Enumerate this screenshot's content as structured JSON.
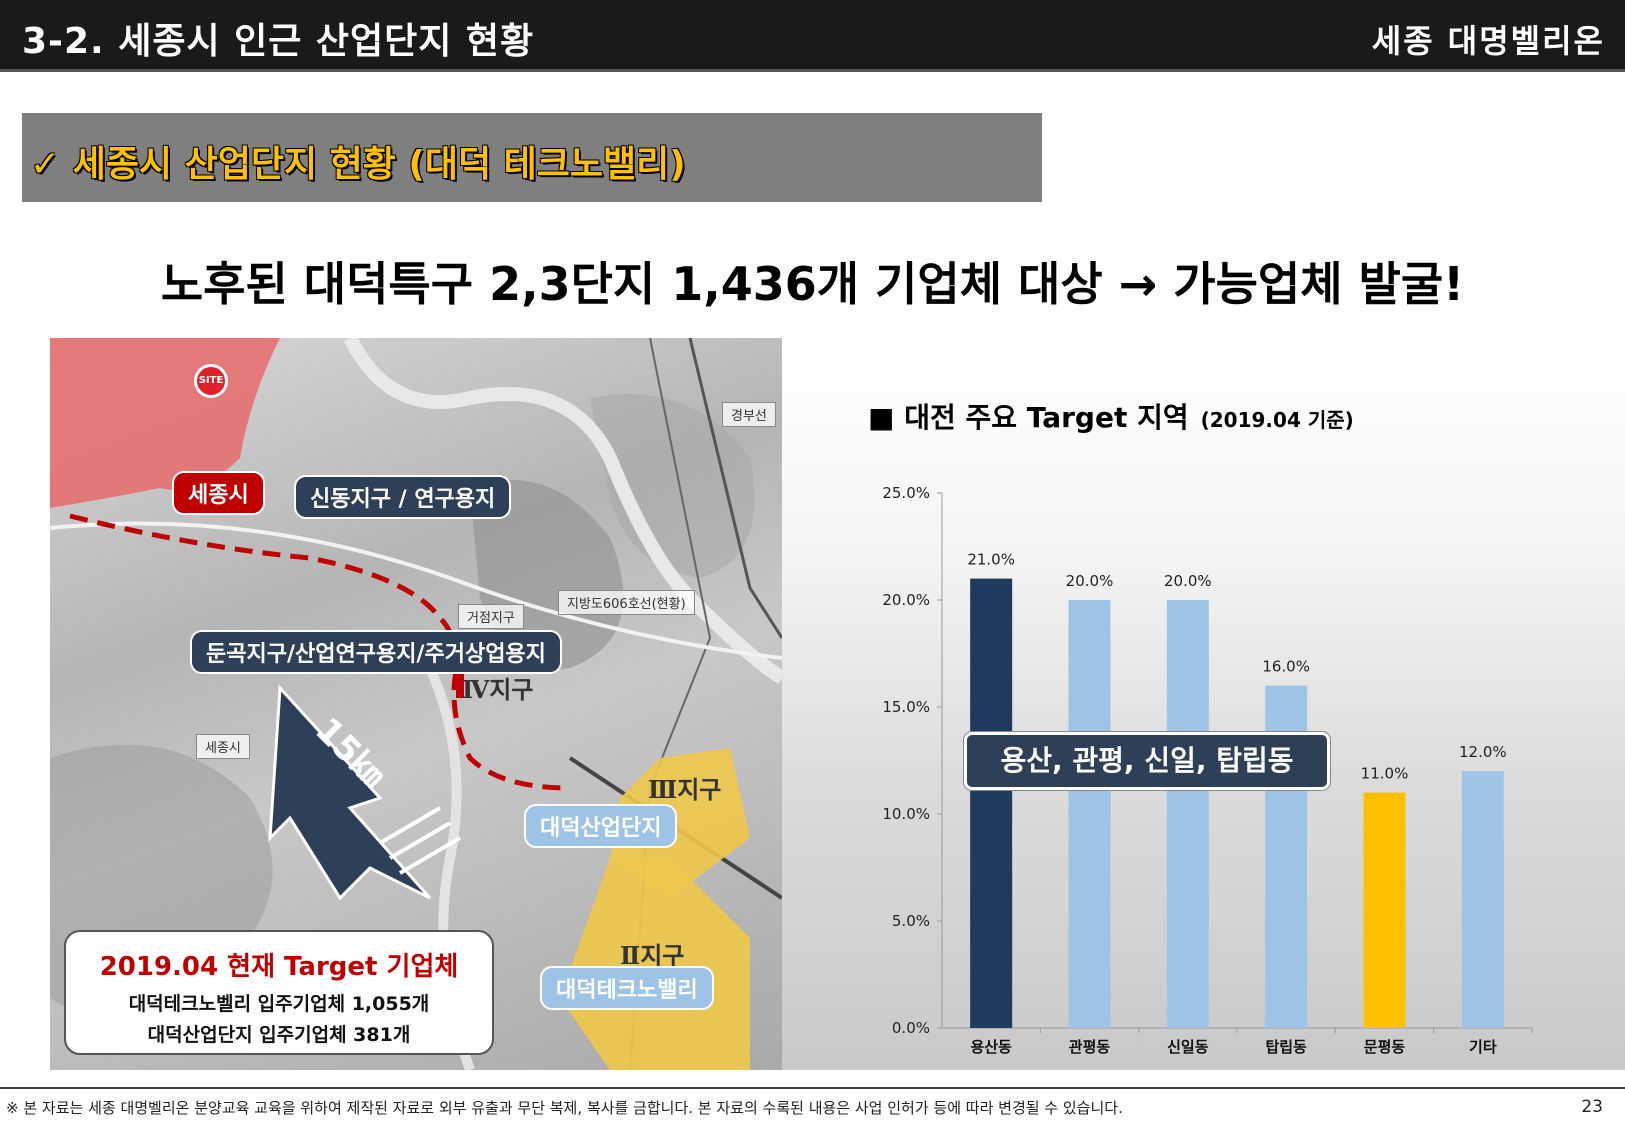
{
  "header": {
    "title": "3-2. 세종시 인근 산업단지 현황",
    "brand": "세종 대명벨리온"
  },
  "section": {
    "banner": "✓ 세종시 산업단지 현황 (대덕 테크노밸리)"
  },
  "headline": "노후된 대덕특구 2,3단지 1,436개 기업체 대상 → 가능업체 발굴!",
  "map": {
    "site_pin": "SITE",
    "sejong_label": "세종시",
    "sindong_label": "신동지구 / 연구용지",
    "dungok_label": "둔곡지구/산업연구용지/주거상업용지",
    "geojeom_label": "거점지구",
    "zone4_label": "Ⅳ지구",
    "zone3_label": "Ⅲ지구",
    "zone2_label": "Ⅱ지구",
    "daedeok_industrial_label": "대덕산업단지",
    "daedeok_techno_label": "대덕테크노밸리",
    "distance_label": "15㎞",
    "small_labels": [
      "세종시",
      "경부선",
      "지방도606호선(현황)"
    ],
    "callout": {
      "title": "2019.04 현재 Target 기업체",
      "line1": "대덕테크노벨리 입주기업체 1,055개",
      "line2": "대덕산업단지 입주기업체 381개"
    }
  },
  "chart": {
    "title": "■ 대전 주요 Target 지역",
    "subtitle": "(2019.04 기준)",
    "highlight": "용산, 관평, 신일, 탑립동"
  },
  "chart_data": {
    "type": "bar",
    "categories": [
      "용산동",
      "관평동",
      "신일동",
      "탑립동",
      "문평동",
      "기타"
    ],
    "values": [
      21.0,
      20.0,
      20.0,
      16.0,
      11.0,
      12.0
    ],
    "data_labels": [
      "21.0%",
      "20.0%",
      "20.0%",
      "16.0%",
      "11.0%",
      "12.0%"
    ],
    "colors": [
      "#1f3a5f",
      "#9dc3e6",
      "#9dc3e6",
      "#9dc3e6",
      "#ffc000",
      "#9dc3e6"
    ],
    "ylim": [
      0,
      25
    ],
    "yticks": [
      "0.0%",
      "5.0%",
      "10.0%",
      "15.0%",
      "20.0%",
      "25.0%"
    ],
    "grid": false
  },
  "footer": {
    "note": "※ 본 자료는 세종 대명벨리온 분양교육 교육을 위하여 제작된 자료로 외부 유출과 무단 복제, 복사를 금합니다. 본 자료의 수록된 내용은 사업 인허가 등에 따라 변경될 수 있습니다.",
    "page": "23"
  }
}
